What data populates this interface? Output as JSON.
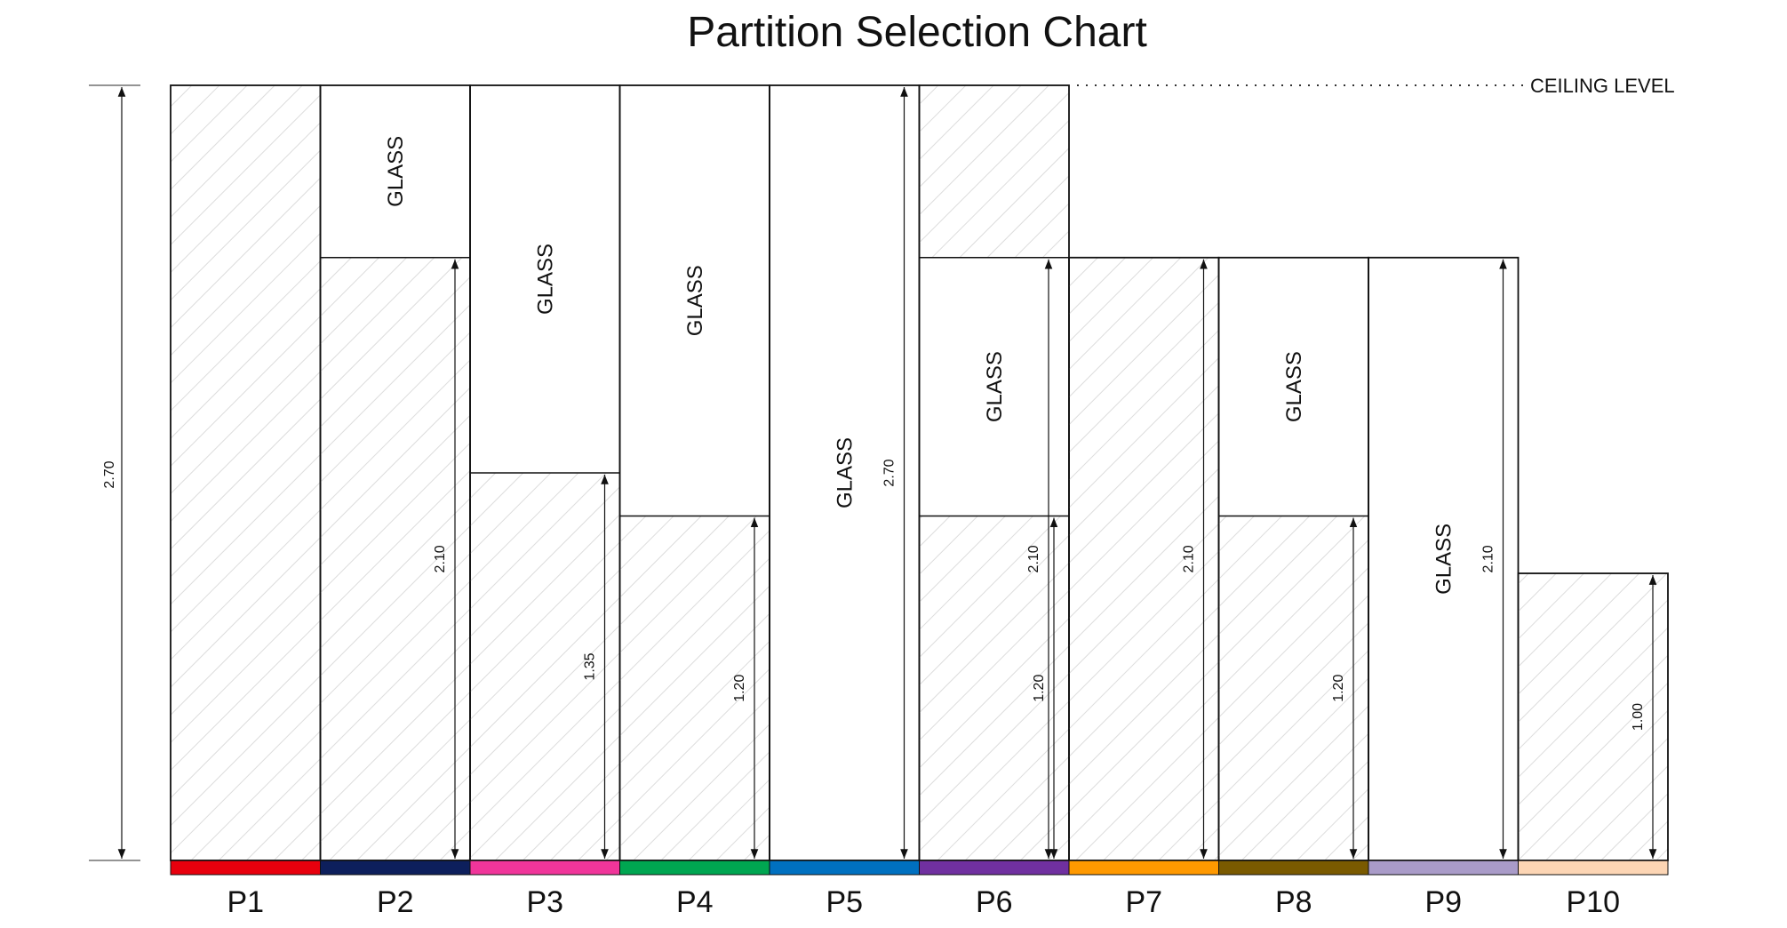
{
  "title": "Partition Selection Chart",
  "ceiling_label": "CEILING LEVEL",
  "overall_height_label": "2.70",
  "glass_label": "GLASS",
  "partitions": [
    {
      "id": "P1",
      "label": "P1",
      "top_m": 2.7,
      "solid_m": 2.7,
      "glass": false,
      "dim": null,
      "color": "#e8000d"
    },
    {
      "id": "P2",
      "label": "P2",
      "top_m": 2.7,
      "solid_m": 2.1,
      "glass": true,
      "dim": "2.10",
      "color": "#0d1f5c"
    },
    {
      "id": "P3",
      "label": "P3",
      "top_m": 2.7,
      "solid_m": 1.35,
      "glass": true,
      "dim": "1.35",
      "color": "#f0359a"
    },
    {
      "id": "P4",
      "label": "P4",
      "top_m": 2.7,
      "solid_m": 1.2,
      "glass": true,
      "dim": "1.20",
      "color": "#00a651"
    },
    {
      "id": "P5",
      "label": "P5",
      "top_m": 2.7,
      "solid_m": 0,
      "glass": true,
      "dim": "2.70",
      "color": "#0070c0"
    },
    {
      "id": "P6",
      "label": "P6",
      "top_m": 2.7,
      "solid_m": 1.2,
      "glass": true,
      "glass_top_m": 2.1,
      "dim": "1.20",
      "dim2": "2.10",
      "color": "#7030a0"
    },
    {
      "id": "P7",
      "label": "P7",
      "top_m": 2.1,
      "solid_m": 2.1,
      "glass": false,
      "dim": "2.10",
      "color": "#ff9900"
    },
    {
      "id": "P8",
      "label": "P8",
      "top_m": 2.1,
      "solid_m": 1.2,
      "glass": true,
      "dim": "1.20",
      "color": "#7a5a00"
    },
    {
      "id": "P9",
      "label": "P9",
      "top_m": 2.1,
      "solid_m": 0,
      "glass": true,
      "dim": "2.10",
      "color": "#a99bc8"
    },
    {
      "id": "P10",
      "label": "P10",
      "top_m": 1.0,
      "solid_m": 1.0,
      "glass": false,
      "dim": "1.00",
      "color": "#fcd5b4"
    }
  ]
}
